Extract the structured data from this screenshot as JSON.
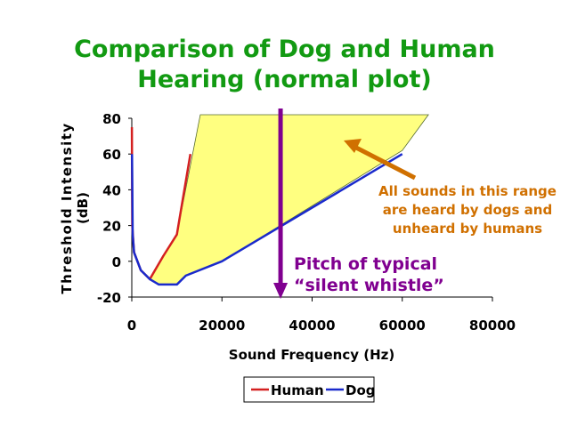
{
  "chart_data": {
    "type": "line",
    "title": [
      "Comparison of Dog and Human",
      "Hearing (normal plot)"
    ],
    "xlabel": "Sound Frequency (Hz)",
    "ylabel": [
      "Threshold Intensity",
      "(dB)"
    ],
    "xlim": [
      0,
      80000
    ],
    "ylim": [
      -20,
      80
    ],
    "xticks": [
      0,
      20000,
      40000,
      60000,
      80000
    ],
    "yticks": [
      -20,
      0,
      20,
      40,
      60,
      80
    ],
    "legend": {
      "position": "bottom",
      "entries": [
        "Human",
        "Dog"
      ]
    },
    "series": [
      {
        "name": "Human",
        "color": "#d42020",
        "x": [
          20,
          100,
          500,
          2000,
          4000,
          7000,
          10000,
          12000,
          13000
        ],
        "y": [
          75,
          20,
          5,
          -5,
          -10,
          3,
          15,
          45,
          60
        ]
      },
      {
        "name": "Dog",
        "color": "#1a2acc",
        "x": [
          50,
          200,
          500,
          2000,
          4000,
          6000,
          10000,
          12000,
          20000,
          60000
        ],
        "y": [
          60,
          15,
          5,
          -5,
          -10,
          -13,
          -13,
          -8,
          0,
          60
        ]
      }
    ],
    "region": {
      "color": "#ffff80",
      "x": [
        4000,
        7000,
        10000,
        15200,
        65800,
        60000,
        20000,
        12000,
        10000,
        6000
      ],
      "y": [
        -10,
        3,
        15,
        82,
        82,
        62,
        0,
        -8,
        -13,
        -13
      ]
    },
    "annotations": [
      {
        "text": [
          "All sounds in this range",
          "are heard by dogs and",
          "unheard by humans"
        ],
        "color": "#d07000"
      },
      {
        "text": [
          "Pitch of typical",
          "“silent whistle”"
        ],
        "color": "#800090",
        "x": 33000
      }
    ]
  }
}
